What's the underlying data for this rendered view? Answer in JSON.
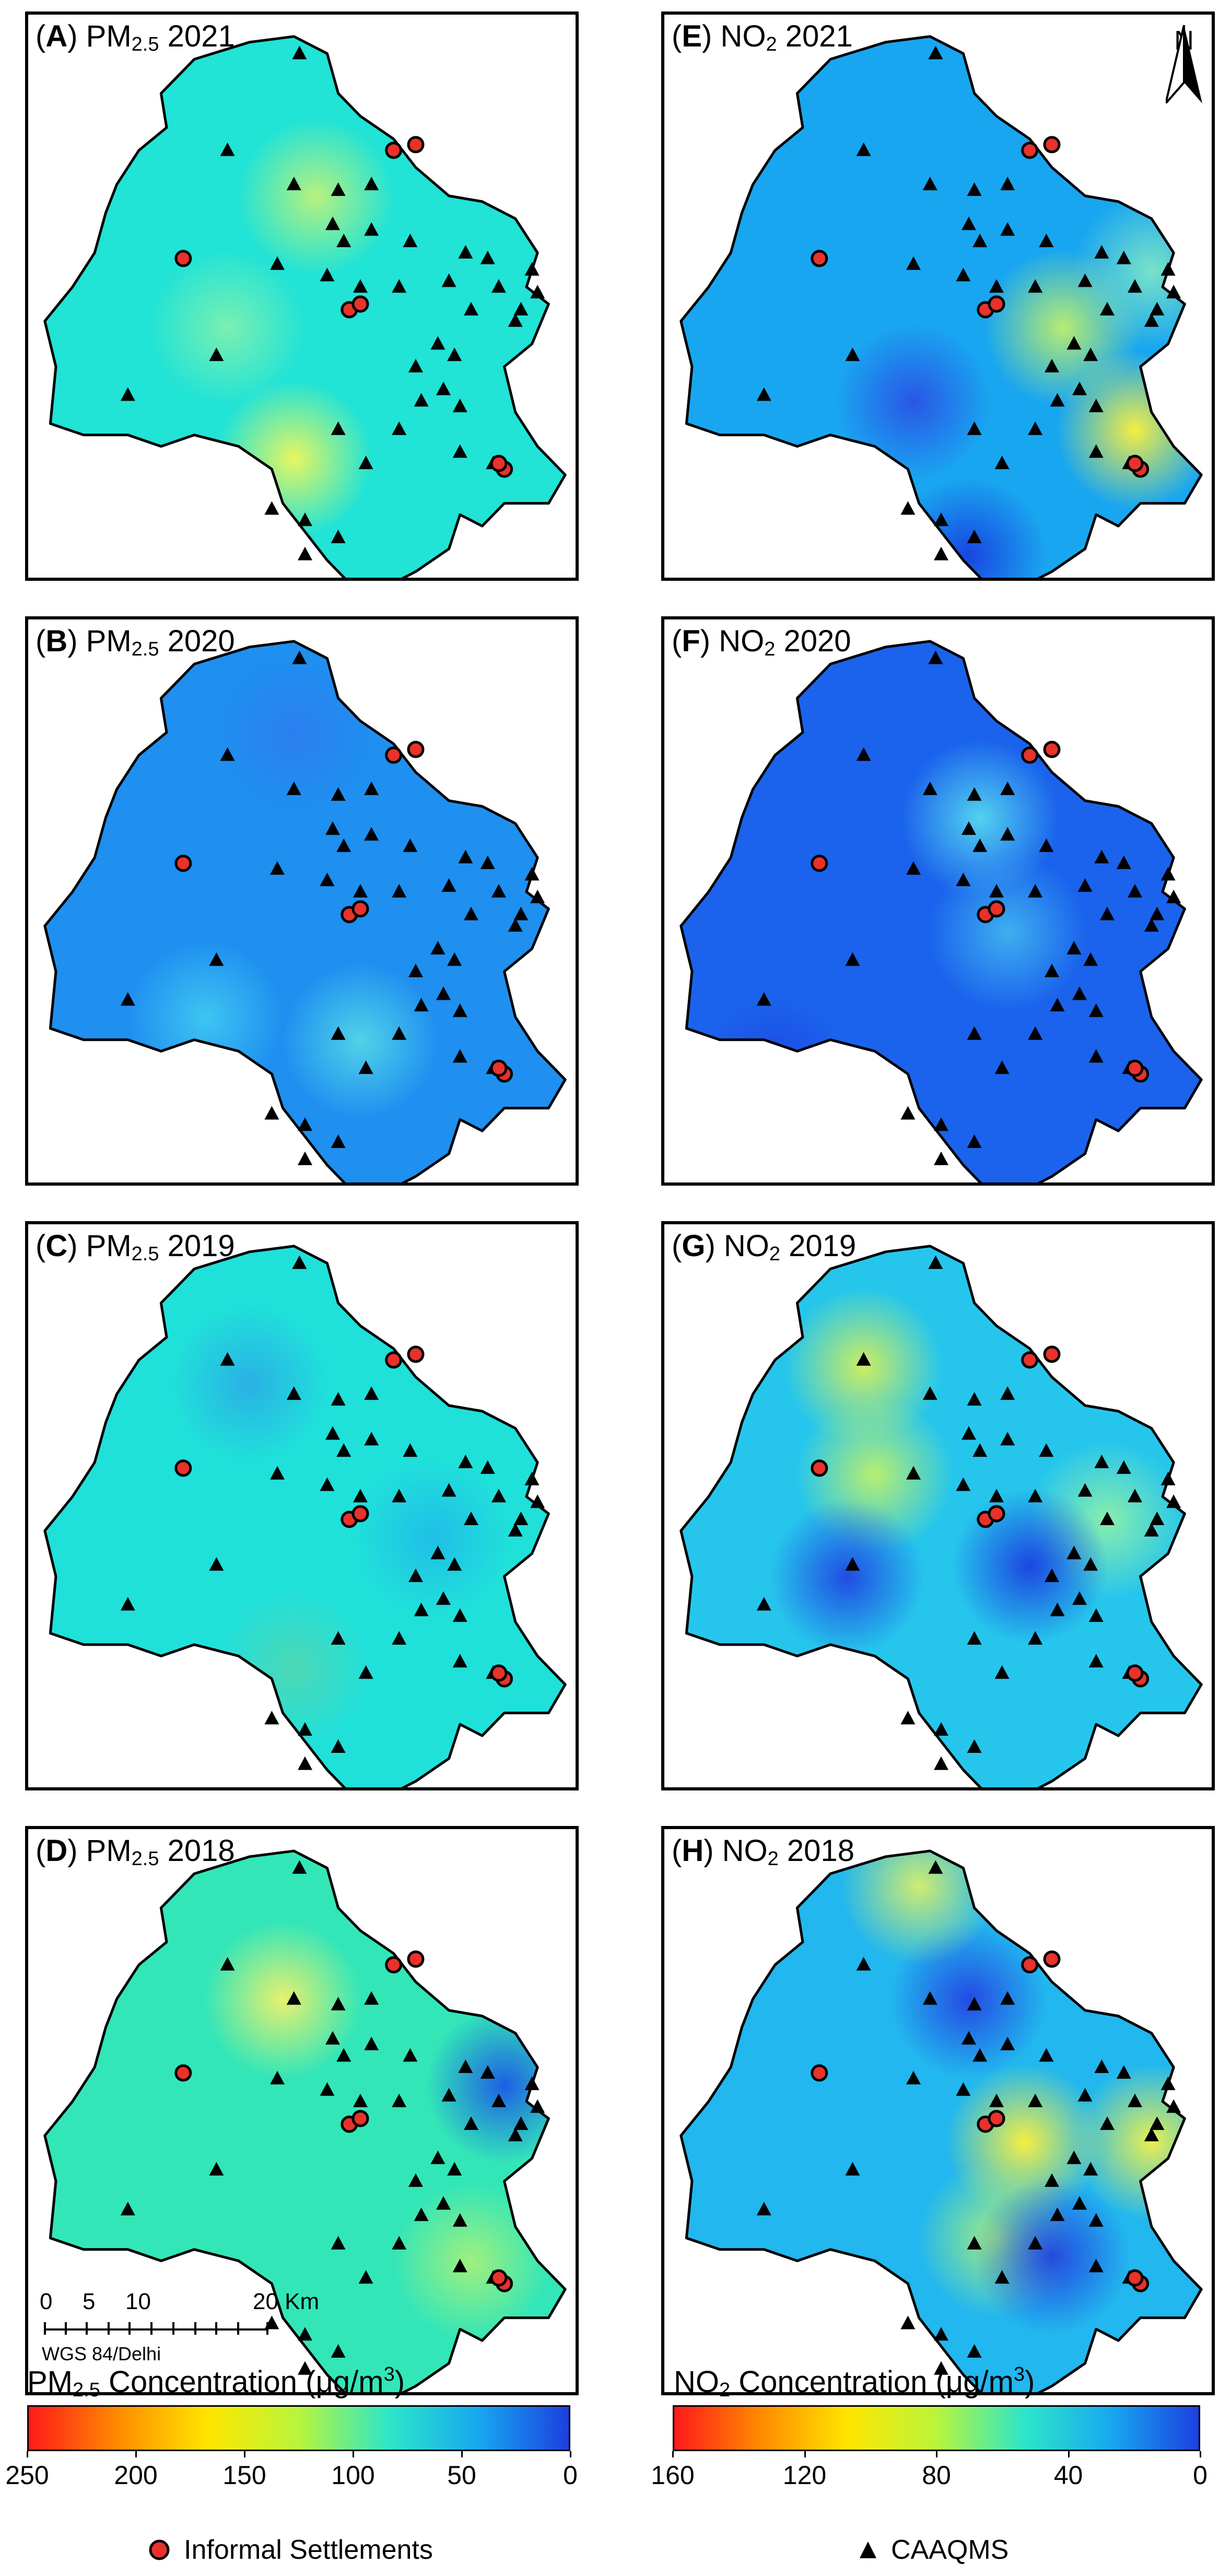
{
  "panels": [
    {
      "id": "A",
      "letter": "A",
      "pollutant_main": "PM",
      "pollutant_sub": "2.5",
      "year": "2021",
      "column": "pm",
      "row": 0,
      "fill": "#21e3d6",
      "hot": [
        [
          "#f2f75a",
          0.48,
          0.78
        ],
        [
          "#7ff0b0",
          0.36,
          0.55
        ],
        [
          "#bff27a",
          0.52,
          0.32
        ]
      ]
    },
    {
      "id": "E",
      "letter": "E",
      "pollutant_main": "NO",
      "pollutant_sub": "2",
      "year": "2021",
      "column": "no2",
      "row": 0,
      "fill": "#19a6f0",
      "hot": [
        [
          "#fff23a",
          0.85,
          0.73
        ],
        [
          "#bff06a",
          0.72,
          0.55
        ],
        [
          "#2a52e6",
          0.45,
          0.68
        ],
        [
          "#1840e0",
          0.55,
          0.95
        ],
        [
          "#7ee6c6",
          0.88,
          0.45
        ]
      ]
    },
    {
      "id": "B",
      "letter": "B",
      "pollutant_main": "PM",
      "pollutant_sub": "2.5",
      "year": "2020",
      "column": "pm",
      "row": 1,
      "fill": "#1f8ff0",
      "hot": [
        [
          "#3fc8f2",
          0.32,
          0.7
        ],
        [
          "#54d6e8",
          0.6,
          0.74
        ],
        [
          "#2b7ef0",
          0.48,
          0.2
        ]
      ]
    },
    {
      "id": "F",
      "letter": "F",
      "pollutant_main": "NO",
      "pollutant_sub": "2",
      "year": "2020",
      "column": "no2",
      "row": 1,
      "fill": "#1b63ec",
      "hot": [
        [
          "#55d8f0",
          0.57,
          0.35
        ],
        [
          "#3fb4f0",
          0.62,
          0.55
        ],
        [
          "#1f46e3",
          0.2,
          0.8
        ]
      ]
    },
    {
      "id": "C",
      "letter": "C",
      "pollutant_main": "PM",
      "pollutant_sub": "2.5",
      "year": "2019",
      "column": "pm",
      "row": 2,
      "fill": "#20e0da",
      "hot": [
        [
          "#4fd8b4",
          0.48,
          0.78
        ],
        [
          "#1fbde8",
          0.73,
          0.55
        ],
        [
          "#2aaee6",
          0.4,
          0.28
        ]
      ]
    },
    {
      "id": "G",
      "letter": "G",
      "pollutant_main": "NO",
      "pollutant_sub": "2",
      "year": "2019",
      "column": "no2",
      "row": 2,
      "fill": "#26c6ec",
      "hot": [
        [
          "#d6ef5a",
          0.36,
          0.25
        ],
        [
          "#bff06a",
          0.38,
          0.44
        ],
        [
          "#2046e3",
          0.33,
          0.62
        ],
        [
          "#8ff0a8",
          0.8,
          0.52
        ],
        [
          "#1c3fe0",
          0.66,
          0.6
        ]
      ]
    },
    {
      "id": "D",
      "letter": "D",
      "pollutant_main": "PM",
      "pollutant_sub": "2.5",
      "year": "2018",
      "column": "pm",
      "row": 3,
      "fill": "#33e6b8",
      "hot": [
        [
          "#f2f16a",
          0.46,
          0.3
        ],
        [
          "#1c58e6",
          0.86,
          0.45
        ],
        [
          "#a6f07a",
          0.8,
          0.76
        ]
      ]
    },
    {
      "id": "H",
      "letter": "H",
      "pollutant_main": "NO",
      "pollutant_sub": "2",
      "year": "2018",
      "column": "no2",
      "row": 3,
      "fill": "#22b7ee",
      "hot": [
        [
          "#fff23a",
          0.65,
          0.55
        ],
        [
          "#f4f24a",
          0.88,
          0.55
        ],
        [
          "#a9f07a",
          0.6,
          0.72
        ],
        [
          "#2444e3",
          0.55,
          0.3
        ],
        [
          "#d8ef6a",
          0.46,
          0.1
        ],
        [
          "#2244e0",
          0.7,
          0.75
        ]
      ]
    }
  ],
  "north_arrow_label": "N",
  "scale_bar": {
    "labels": [
      "0",
      "5",
      "10",
      "20 Km"
    ],
    "projection": "WGS 84/Delhi"
  },
  "legends": {
    "pm": {
      "title_main": "PM",
      "title_sub": "2.5",
      "title_rest": " Concentration (μg/m",
      "title_sup": "3",
      "title_end": ")",
      "ticks": [
        "250",
        "200",
        "150",
        "100",
        "50",
        "0"
      ]
    },
    "no2": {
      "title_main": "NO",
      "title_sub": "2",
      "title_rest": " Concentration (μg/m",
      "title_sup": "3",
      "title_end": ")",
      "ticks": [
        "160",
        "120",
        "80",
        "40",
        "0"
      ]
    }
  },
  "keys": {
    "informal_settlements": "Informal Settlements",
    "caaqms": "CAAQMS"
  },
  "colors": {
    "settlement_fill": "#e8322b",
    "boundary": "#000000",
    "colorbar": [
      "#ff1a1a",
      "#ff8c00",
      "#ffe600",
      "#b8f53c",
      "#2de6c8",
      "#17a8f0",
      "#1c3fe0"
    ]
  }
}
